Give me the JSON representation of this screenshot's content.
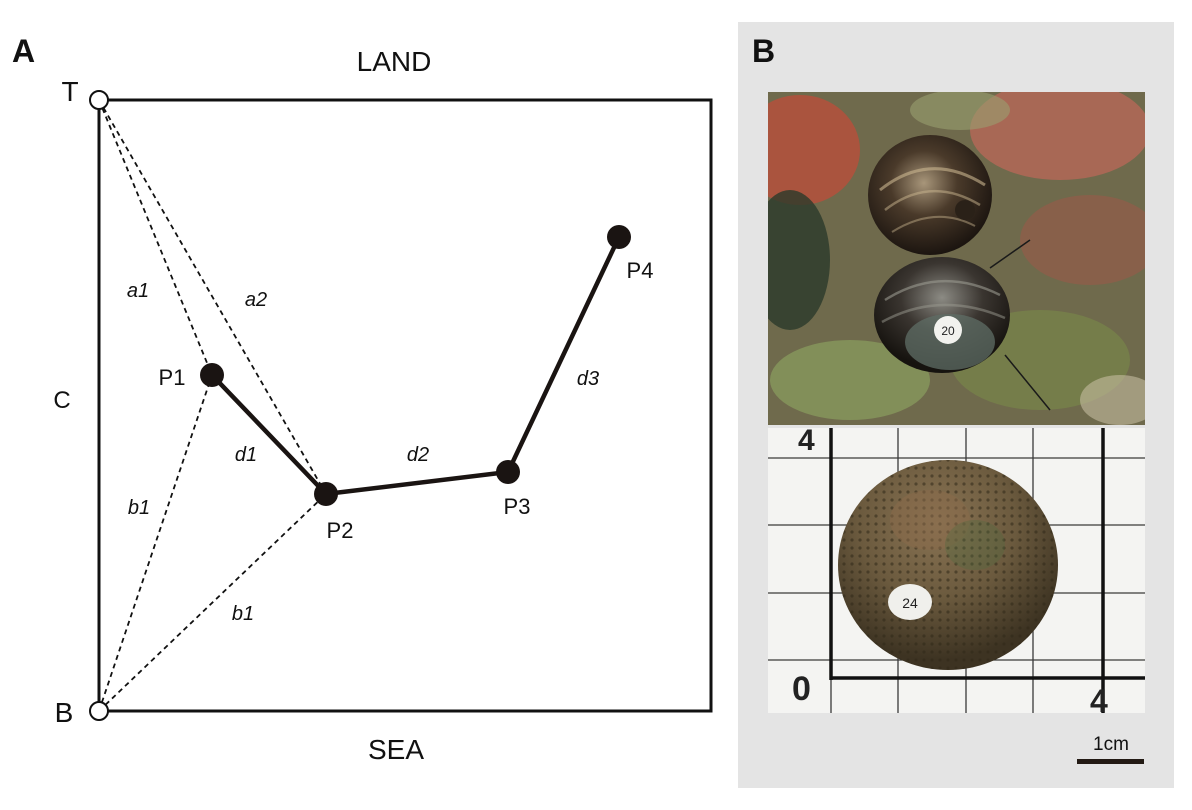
{
  "panel_a": {
    "letter": "A",
    "top_label": "LAND",
    "bottom_label": "SEA",
    "left_label": "C",
    "corner_top": "T",
    "corner_bottom": "B",
    "points": {
      "p1": "P1",
      "p2": "P2",
      "p3": "P3",
      "p4": "P4"
    },
    "distances": {
      "a1": "a1",
      "a2": "a2",
      "b1_upper": "b1",
      "b1_lower": "b1",
      "d1": "d1",
      "d2": "d2",
      "d3": "d3"
    }
  },
  "panel_b": {
    "letter": "B",
    "upper_photo": {
      "tag_number": "20"
    },
    "lower_photo": {
      "tag_number": "24",
      "grid_label_top": "4",
      "grid_label_origin": "0",
      "grid_label_right": "4"
    },
    "scale_bar_label": "1cm"
  }
}
